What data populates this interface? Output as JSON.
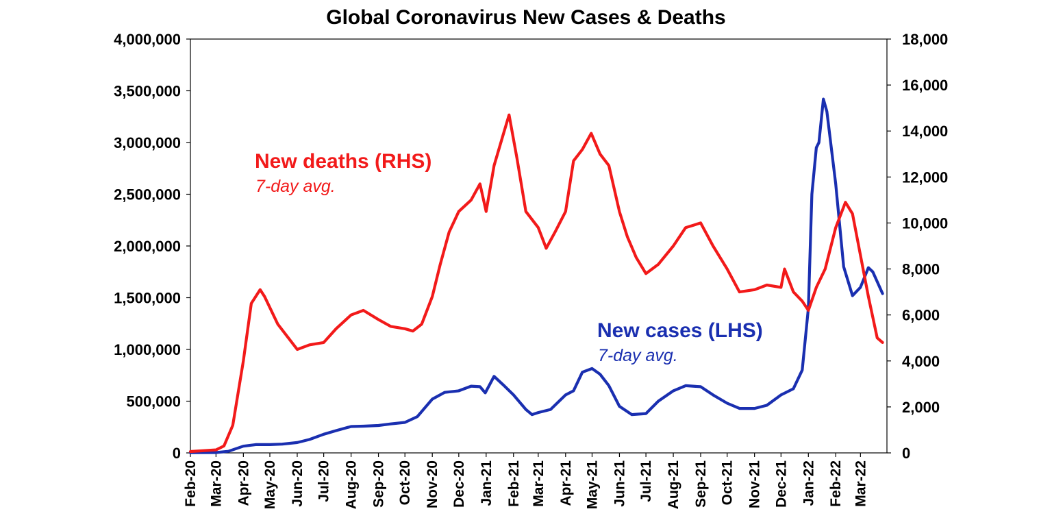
{
  "chart_data": {
    "type": "line",
    "title": "Global Coronavirus New Cases & Deaths",
    "categories": [
      "Feb-20",
      "Mar-20",
      "Apr-20",
      "May-20",
      "Jun-20",
      "Jul-20",
      "Aug-20",
      "Sep-20",
      "Oct-20",
      "Nov-20",
      "Dec-20",
      "Jan-21",
      "Feb-21",
      "Mar-21",
      "Apr-21",
      "May-21",
      "Jun-21",
      "Jul-21",
      "Aug-21",
      "Sep-21",
      "Oct-21",
      "Nov-21",
      "Dec-21",
      "Jan-22",
      "Feb-22",
      "Mar-22"
    ],
    "y_left": {
      "ylim": [
        0,
        4000000
      ],
      "ticks": [
        0,
        500000,
        1000000,
        1500000,
        2000000,
        2500000,
        3000000,
        3500000,
        4000000
      ],
      "tick_labels": [
        "0",
        "500,000",
        "1,000,000",
        "1,500,000",
        "2,000,000",
        "2,500,000",
        "3,000,000",
        "3,500,000",
        "4,000,000"
      ]
    },
    "y_right": {
      "ylim": [
        0,
        18000
      ],
      "ticks": [
        0,
        2000,
        4000,
        6000,
        8000,
        10000,
        12000,
        14000,
        16000,
        18000
      ],
      "tick_labels": [
        "0",
        "2,000",
        "4,000",
        "6,000",
        "8,000",
        "10,000",
        "12,000",
        "14,000",
        "16,000",
        "18,000"
      ]
    },
    "series": [
      {
        "name": "New cases (LHS)",
        "subtitle": "7-day avg.",
        "axis": "left",
        "color": "#1a2fb0",
        "points": [
          [
            "2020-02-01",
            2000
          ],
          [
            "2020-03-01",
            3000
          ],
          [
            "2020-03-15",
            15000
          ],
          [
            "2020-04-01",
            65000
          ],
          [
            "2020-04-15",
            80000
          ],
          [
            "2020-05-01",
            80000
          ],
          [
            "2020-05-15",
            85000
          ],
          [
            "2020-06-01",
            100000
          ],
          [
            "2020-06-15",
            130000
          ],
          [
            "2020-07-01",
            180000
          ],
          [
            "2020-07-15",
            215000
          ],
          [
            "2020-08-01",
            255000
          ],
          [
            "2020-08-15",
            258000
          ],
          [
            "2020-09-01",
            265000
          ],
          [
            "2020-09-15",
            280000
          ],
          [
            "2020-10-01",
            295000
          ],
          [
            "2020-10-15",
            350000
          ],
          [
            "2020-11-01",
            520000
          ],
          [
            "2020-11-15",
            585000
          ],
          [
            "2020-12-01",
            600000
          ],
          [
            "2020-12-15",
            645000
          ],
          [
            "2020-12-25",
            640000
          ],
          [
            "2020-12-31",
            580000
          ],
          [
            "2021-01-10",
            740000
          ],
          [
            "2021-01-20",
            660000
          ],
          [
            "2021-02-01",
            560000
          ],
          [
            "2021-02-15",
            420000
          ],
          [
            "2021-02-22",
            370000
          ],
          [
            "2021-03-01",
            390000
          ],
          [
            "2021-03-15",
            420000
          ],
          [
            "2021-04-01",
            560000
          ],
          [
            "2021-04-10",
            600000
          ],
          [
            "2021-04-20",
            780000
          ],
          [
            "2021-05-01",
            815000
          ],
          [
            "2021-05-10",
            760000
          ],
          [
            "2021-05-20",
            650000
          ],
          [
            "2021-06-01",
            450000
          ],
          [
            "2021-06-15",
            370000
          ],
          [
            "2021-07-01",
            380000
          ],
          [
            "2021-07-15",
            500000
          ],
          [
            "2021-08-01",
            600000
          ],
          [
            "2021-08-15",
            650000
          ],
          [
            "2021-09-01",
            640000
          ],
          [
            "2021-09-15",
            560000
          ],
          [
            "2021-10-01",
            480000
          ],
          [
            "2021-10-15",
            430000
          ],
          [
            "2021-11-01",
            430000
          ],
          [
            "2021-11-15",
            460000
          ],
          [
            "2021-12-01",
            560000
          ],
          [
            "2021-12-15",
            620000
          ],
          [
            "2021-12-25",
            800000
          ],
          [
            "2022-01-01",
            1400000
          ],
          [
            "2022-01-05",
            2500000
          ],
          [
            "2022-01-10",
            2950000
          ],
          [
            "2022-01-13",
            3000000
          ],
          [
            "2022-01-18",
            3420000
          ],
          [
            "2022-01-22",
            3300000
          ],
          [
            "2022-02-01",
            2600000
          ],
          [
            "2022-02-10",
            1800000
          ],
          [
            "2022-02-20",
            1520000
          ],
          [
            "2022-03-01",
            1600000
          ],
          [
            "2022-03-10",
            1790000
          ],
          [
            "2022-03-15",
            1750000
          ],
          [
            "2022-03-26",
            1540000
          ]
        ]
      },
      {
        "name": "New deaths (RHS)",
        "subtitle": "7-day avg.",
        "axis": "right",
        "color": "#f21a1a",
        "points": [
          [
            "2020-02-01",
            60
          ],
          [
            "2020-03-01",
            130
          ],
          [
            "2020-03-10",
            300
          ],
          [
            "2020-03-20",
            1200
          ],
          [
            "2020-04-01",
            4000
          ],
          [
            "2020-04-10",
            6500
          ],
          [
            "2020-04-20",
            7100
          ],
          [
            "2020-04-25",
            6800
          ],
          [
            "2020-05-10",
            5600
          ],
          [
            "2020-06-01",
            4500
          ],
          [
            "2020-06-15",
            4700
          ],
          [
            "2020-07-01",
            4800
          ],
          [
            "2020-07-15",
            5400
          ],
          [
            "2020-08-01",
            6000
          ],
          [
            "2020-08-15",
            6200
          ],
          [
            "2020-09-01",
            5800
          ],
          [
            "2020-09-15",
            5500
          ],
          [
            "2020-10-01",
            5400
          ],
          [
            "2020-10-10",
            5300
          ],
          [
            "2020-10-20",
            5600
          ],
          [
            "2020-11-01",
            6800
          ],
          [
            "2020-11-10",
            8200
          ],
          [
            "2020-11-20",
            9600
          ],
          [
            "2020-12-01",
            10500
          ],
          [
            "2020-12-15",
            11000
          ],
          [
            "2020-12-25",
            11700
          ],
          [
            "2021-01-01",
            10500
          ],
          [
            "2021-01-10",
            12500
          ],
          [
            "2021-01-20",
            13800
          ],
          [
            "2021-01-27",
            14700
          ],
          [
            "2021-02-05",
            12800
          ],
          [
            "2021-02-15",
            10500
          ],
          [
            "2021-03-01",
            9800
          ],
          [
            "2021-03-10",
            8900
          ],
          [
            "2021-03-20",
            9600
          ],
          [
            "2021-04-01",
            10500
          ],
          [
            "2021-04-10",
            12700
          ],
          [
            "2021-04-20",
            13200
          ],
          [
            "2021-04-30",
            13900
          ],
          [
            "2021-05-10",
            13000
          ],
          [
            "2021-05-20",
            12500
          ],
          [
            "2021-06-01",
            10500
          ],
          [
            "2021-06-10",
            9400
          ],
          [
            "2021-06-20",
            8500
          ],
          [
            "2021-07-01",
            7800
          ],
          [
            "2021-07-15",
            8200
          ],
          [
            "2021-08-01",
            9000
          ],
          [
            "2021-08-15",
            9800
          ],
          [
            "2021-09-01",
            10000
          ],
          [
            "2021-09-15",
            9000
          ],
          [
            "2021-10-01",
            8000
          ],
          [
            "2021-10-15",
            7000
          ],
          [
            "2021-11-01",
            7100
          ],
          [
            "2021-11-15",
            7300
          ],
          [
            "2021-12-01",
            7200
          ],
          [
            "2021-12-05",
            8000
          ],
          [
            "2021-12-15",
            7000
          ],
          [
            "2021-12-25",
            6600
          ],
          [
            "2022-01-01",
            6200
          ],
          [
            "2022-01-10",
            7200
          ],
          [
            "2022-01-20",
            8000
          ],
          [
            "2022-02-01",
            9800
          ],
          [
            "2022-02-12",
            10900
          ],
          [
            "2022-02-20",
            10400
          ],
          [
            "2022-03-01",
            8600
          ],
          [
            "2022-03-10",
            6800
          ],
          [
            "2022-03-20",
            5000
          ],
          [
            "2022-03-26",
            4800
          ]
        ]
      }
    ],
    "grid": false,
    "legend": "inline annotations"
  }
}
